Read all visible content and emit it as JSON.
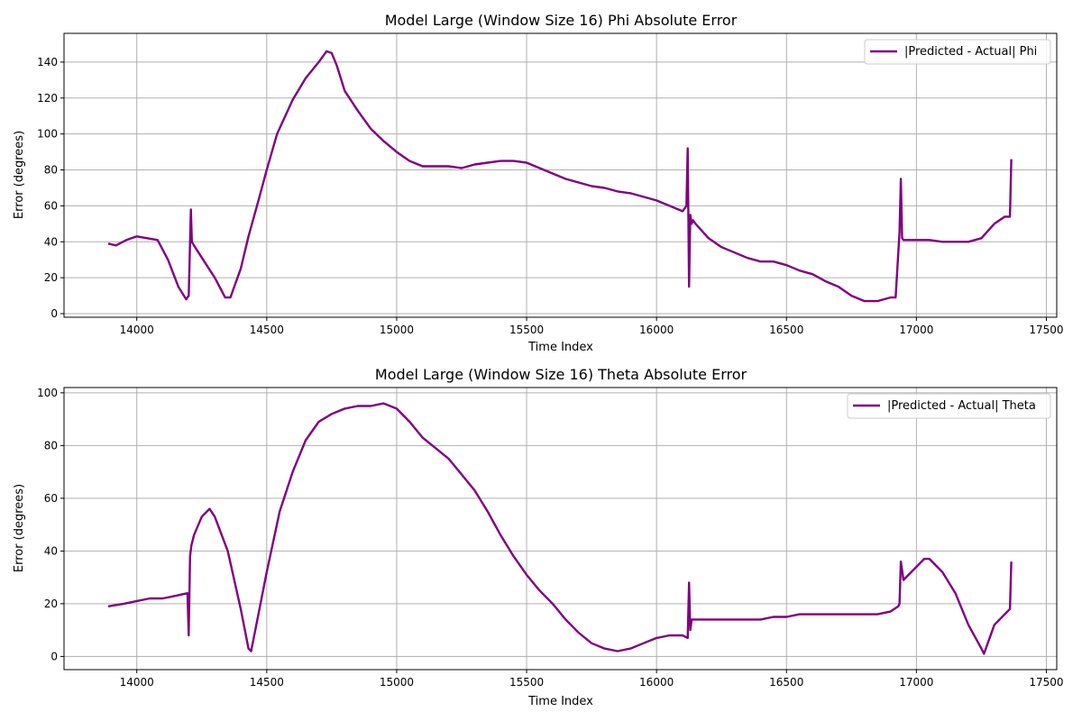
{
  "chart_data": [
    {
      "type": "line",
      "title": "Model Large (Window Size 16) Phi Absolute Error",
      "xlabel": "Time Index",
      "ylabel": "Error (degrees)",
      "xlim": [
        13720,
        17540
      ],
      "ylim": [
        -2,
        156
      ],
      "xticks": [
        14000,
        14500,
        15000,
        15500,
        16000,
        16500,
        17000,
        17500
      ],
      "yticks": [
        0,
        20,
        40,
        60,
        80,
        100,
        120,
        140
      ],
      "grid": true,
      "legend_position": "top-right",
      "series": [
        {
          "name": "|Predicted - Actual| Phi",
          "color": "#800080",
          "x": [
            13890,
            13920,
            13960,
            14000,
            14040,
            14080,
            14120,
            14160,
            14190,
            14200,
            14205,
            14208,
            14212,
            14220,
            14260,
            14300,
            14340,
            14360,
            14400,
            14430,
            14470,
            14500,
            14540,
            14600,
            14650,
            14700,
            14730,
            14750,
            14770,
            14800,
            14850,
            14900,
            14950,
            15000,
            15050,
            15100,
            15150,
            15200,
            15250,
            15300,
            15350,
            15400,
            15450,
            15500,
            15550,
            15600,
            15650,
            15700,
            15750,
            15800,
            15850,
            15900,
            15950,
            16000,
            16050,
            16100,
            16115,
            16120,
            16125,
            16130,
            16135,
            16140,
            16150,
            16200,
            16250,
            16300,
            16350,
            16400,
            16450,
            16500,
            16550,
            16600,
            16650,
            16700,
            16750,
            16800,
            16850,
            16900,
            16920,
            16935,
            16940,
            16945,
            16950,
            16970,
            17000,
            17050,
            17100,
            17150,
            17200,
            17250,
            17300,
            17340,
            17360,
            17365
          ],
          "y": [
            39,
            38,
            41,
            43,
            42,
            41,
            30,
            15,
            8,
            10,
            40,
            58,
            40,
            38,
            29,
            20,
            9,
            9,
            25,
            43,
            64,
            80,
            100,
            119,
            131,
            140,
            146,
            145,
            138,
            124,
            113,
            103,
            96,
            90,
            85,
            82,
            82,
            82,
            81,
            83,
            84,
            85,
            85,
            84,
            81,
            78,
            75,
            73,
            71,
            70,
            68,
            67,
            65,
            63,
            60,
            57,
            60,
            92,
            15,
            55,
            50,
            52,
            50,
            42,
            37,
            34,
            31,
            29,
            29,
            27,
            24,
            22,
            18,
            15,
            10,
            7,
            7,
            9,
            9,
            45,
            75,
            42,
            41,
            41,
            41,
            41,
            40,
            40,
            40,
            42,
            50,
            54,
            54,
            86
          ]
        }
      ]
    },
    {
      "type": "line",
      "title": "Model Large (Window Size 16) Theta Absolute Error",
      "xlabel": "Time Index",
      "ylabel": "Error (degrees)",
      "xlim": [
        13720,
        17540
      ],
      "ylim": [
        -5,
        102
      ],
      "xticks": [
        14000,
        14500,
        15000,
        15500,
        16000,
        16500,
        17000,
        17500
      ],
      "yticks": [
        0,
        20,
        40,
        60,
        80,
        100
      ],
      "grid": true,
      "legend_position": "top-right",
      "series": [
        {
          "name": "|Predicted - Actual| Theta",
          "color": "#800080",
          "x": [
            13890,
            13950,
            14000,
            14050,
            14100,
            14150,
            14195,
            14200,
            14205,
            14210,
            14220,
            14250,
            14280,
            14300,
            14350,
            14400,
            14430,
            14440,
            14460,
            14500,
            14550,
            14600,
            14650,
            14700,
            14750,
            14800,
            14850,
            14900,
            14950,
            15000,
            15050,
            15100,
            15150,
            15200,
            15250,
            15300,
            15350,
            15400,
            15450,
            15500,
            15550,
            15600,
            15650,
            15700,
            15750,
            15800,
            15850,
            15900,
            15950,
            16000,
            16050,
            16100,
            16120,
            16125,
            16130,
            16135,
            16150,
            16200,
            16250,
            16300,
            16350,
            16400,
            16450,
            16500,
            16550,
            16600,
            16650,
            16700,
            16750,
            16800,
            16850,
            16900,
            16930,
            16935,
            16940,
            16950,
            17000,
            17030,
            17050,
            17100,
            17150,
            17200,
            17250,
            17260,
            17300,
            17350,
            17360,
            17365
          ],
          "y": [
            19,
            20,
            21,
            22,
            22,
            23,
            24,
            8,
            38,
            42,
            46,
            53,
            56,
            53,
            40,
            18,
            3,
            2,
            12,
            32,
            55,
            70,
            82,
            89,
            92,
            94,
            95,
            95,
            96,
            94,
            89,
            83,
            79,
            75,
            69,
            63,
            55,
            46,
            38,
            31,
            25,
            20,
            14,
            9,
            5,
            3,
            2,
            3,
            5,
            7,
            8,
            8,
            7,
            28,
            10,
            14,
            14,
            14,
            14,
            14,
            14,
            14,
            15,
            15,
            16,
            16,
            16,
            16,
            16,
            16,
            16,
            17,
            19,
            20,
            36,
            29,
            34,
            37,
            37,
            32,
            24,
            12,
            3,
            1,
            12,
            17,
            18,
            36
          ]
        }
      ]
    }
  ]
}
